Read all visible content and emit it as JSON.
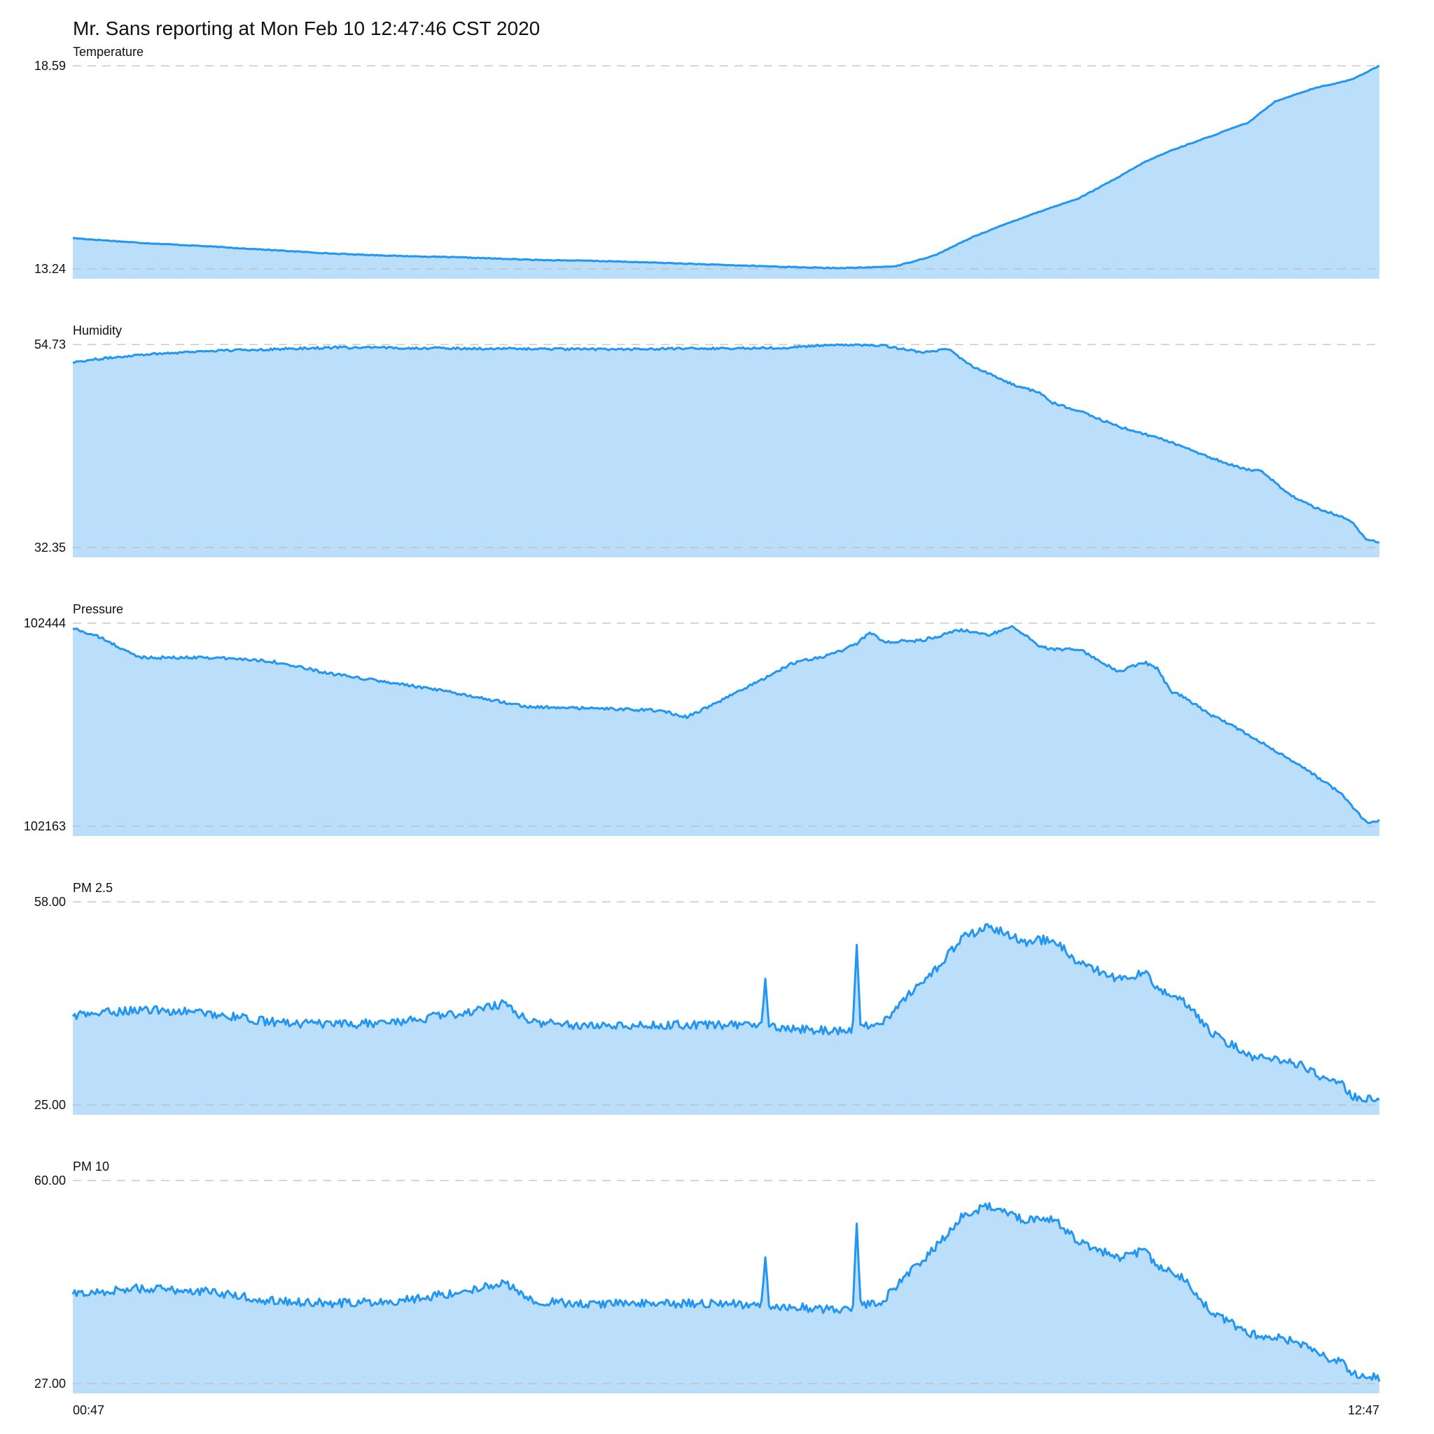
{
  "title": "Mr. Sans reporting at Mon Feb 10 12:47:46 CST 2020",
  "x_axis": {
    "start_label": "00:47",
    "end_label": "12:47"
  },
  "colors": {
    "line": "#2196f3",
    "fill": "#bbdefb",
    "grid": "#bdbdbd",
    "text": "#111111"
  },
  "chart_data": [
    {
      "type": "area",
      "title": "Temperature",
      "ylim": [
        13.24,
        18.59
      ],
      "ytick_labels": [
        "18.59",
        "13.24"
      ],
      "x": [
        0,
        0.05,
        0.1,
        0.15,
        0.2,
        0.25,
        0.3,
        0.35,
        0.4,
        0.45,
        0.5,
        0.55,
        0.58,
        0.6,
        0.61,
        0.63,
        0.66,
        0.69,
        0.72,
        0.74,
        0.77,
        0.8,
        0.82,
        0.84,
        0.86,
        0.87,
        0.88,
        0.9,
        0.92,
        0.95,
        0.97,
        0.98,
        1.0
      ],
      "values": [
        14.05,
        13.93,
        13.84,
        13.74,
        13.64,
        13.58,
        13.54,
        13.48,
        13.45,
        13.4,
        13.34,
        13.29,
        13.26,
        13.27,
        13.28,
        13.31,
        13.6,
        14.1,
        14.5,
        14.75,
        15.1,
        15.65,
        16.05,
        16.35,
        16.6,
        16.72,
        16.85,
        17.1,
        17.65,
        18.0,
        18.15,
        18.25,
        18.59
      ],
      "noise": 0.01
    },
    {
      "type": "area",
      "title": "Humidity",
      "ylim": [
        32.35,
        54.73
      ],
      "ytick_labels": [
        "54.73",
        "32.35"
      ],
      "x": [
        0,
        0.05,
        0.1,
        0.2,
        0.3,
        0.4,
        0.5,
        0.55,
        0.58,
        0.6,
        0.62,
        0.65,
        0.67,
        0.69,
        0.72,
        0.74,
        0.75,
        0.77,
        0.8,
        0.84,
        0.87,
        0.89,
        0.9,
        0.91,
        0.93,
        0.95,
        0.97,
        0.98,
        0.99,
        1.0
      ],
      "values": [
        52.8,
        53.6,
        54.0,
        54.4,
        54.3,
        54.2,
        54.3,
        54.4,
        54.7,
        54.7,
        54.6,
        53.9,
        54.2,
        52.2,
        50.3,
        49.4,
        48.3,
        47.4,
        45.7,
        44.0,
        42.3,
        41.3,
        40.9,
        40.8,
        38.3,
        36.8,
        35.8,
        35.0,
        33.2,
        33.0
      ],
      "noise": 0.12
    },
    {
      "type": "area",
      "title": "Pressure",
      "ylim": [
        102163,
        102444
      ],
      "ytick_labels": [
        "102444",
        "102163"
      ],
      "x": [
        0,
        0.02,
        0.05,
        0.08,
        0.1,
        0.15,
        0.2,
        0.25,
        0.3,
        0.35,
        0.4,
        0.45,
        0.47,
        0.5,
        0.55,
        0.58,
        0.6,
        0.61,
        0.62,
        0.65,
        0.68,
        0.7,
        0.72,
        0.74,
        0.75,
        0.77,
        0.8,
        0.82,
        0.83,
        0.84,
        0.85,
        0.87,
        0.9,
        0.92,
        0.95,
        0.97,
        0.98,
        0.99,
        1.0
      ],
      "values": [
        102437,
        102425,
        102397,
        102396,
        102397,
        102392,
        102373,
        102360,
        102345,
        102328,
        102326,
        102323,
        102314,
        102340,
        102388,
        102400,
        102415,
        102432,
        102418,
        102420,
        102435,
        102427,
        102440,
        102412,
        102408,
        102408,
        102377,
        102390,
        102382,
        102350,
        102342,
        102318,
        102290,
        102268,
        102234,
        102209,
        102188,
        102168,
        102171
      ],
      "noise": 2.0
    },
    {
      "type": "area",
      "title": "PM 2.5",
      "ylim": [
        25.0,
        58.0
      ],
      "ytick_labels": [
        "58.00",
        "25.00"
      ],
      "x": [
        0,
        0.05,
        0.1,
        0.15,
        0.2,
        0.25,
        0.3,
        0.33,
        0.35,
        0.38,
        0.4,
        0.45,
        0.5,
        0.55,
        0.58,
        0.6,
        0.62,
        0.64,
        0.66,
        0.68,
        0.7,
        0.73,
        0.75,
        0.77,
        0.8,
        0.82,
        0.83,
        0.85,
        0.87,
        0.9,
        0.92,
        0.94,
        0.96,
        0.97,
        0.98,
        0.99,
        1.0
      ],
      "values": [
        39.5,
        40.5,
        40.0,
        38.5,
        38.0,
        38.5,
        40.0,
        41.5,
        38.5,
        38.0,
        38.0,
        38.0,
        38.0,
        37.5,
        37.0,
        37.5,
        38.5,
        43.0,
        47.0,
        52.0,
        54.0,
        51.5,
        52.0,
        48.0,
        45.5,
        46.5,
        44.0,
        42.0,
        37.0,
        33.0,
        32.5,
        31.5,
        29.0,
        28.5,
        26.5,
        26.0,
        26.0
      ],
      "noise": 0.7,
      "spikes": [
        [
          0.53,
          45.5
        ],
        [
          0.6,
          51.0
        ]
      ]
    },
    {
      "type": "area",
      "title": "PM 10",
      "ylim": [
        27.0,
        60.0
      ],
      "ytick_labels": [
        "60.00",
        "27.00"
      ],
      "x": [
        0,
        0.05,
        0.1,
        0.15,
        0.2,
        0.25,
        0.3,
        0.33,
        0.35,
        0.38,
        0.4,
        0.45,
        0.5,
        0.55,
        0.58,
        0.6,
        0.62,
        0.64,
        0.66,
        0.68,
        0.7,
        0.73,
        0.75,
        0.77,
        0.8,
        0.82,
        0.83,
        0.85,
        0.87,
        0.9,
        0.92,
        0.94,
        0.96,
        0.97,
        0.98,
        0.99,
        1.0
      ],
      "values": [
        41.5,
        42.5,
        42.0,
        40.5,
        40.0,
        40.5,
        42.0,
        43.5,
        40.5,
        40.0,
        40.0,
        40.0,
        40.0,
        39.5,
        39.0,
        39.5,
        40.5,
        45.0,
        49.0,
        54.0,
        56.0,
        53.5,
        54.0,
        50.0,
        47.5,
        48.5,
        46.0,
        44.0,
        39.0,
        35.0,
        34.5,
        33.5,
        31.0,
        30.5,
        28.5,
        28.0,
        28.0
      ],
      "noise": 0.7,
      "spikes": [
        [
          0.53,
          47.5
        ],
        [
          0.6,
          53.0
        ]
      ]
    }
  ]
}
